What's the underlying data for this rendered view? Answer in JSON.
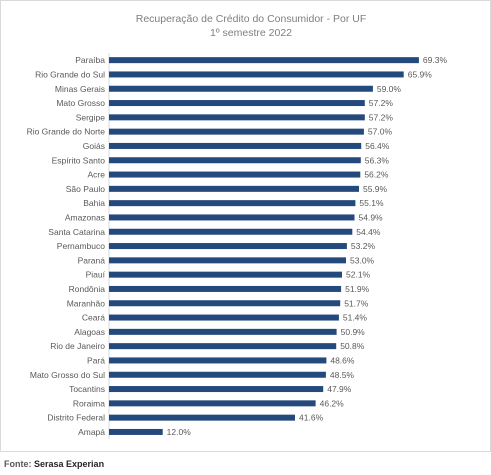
{
  "chart_data": {
    "type": "bar",
    "orientation": "horizontal",
    "title": "Recuperação de Crédito do Consumidor -  Por UF",
    "subtitle": "1º semestre 2022",
    "categories": [
      "Paraíba",
      "Rio Grande do Sul",
      "Minas Gerais",
      "Mato Grosso",
      "Sergipe",
      "Rio Grande do Norte",
      "Goiás",
      "Espírito Santo",
      "Acre",
      "São Paulo",
      "Bahia",
      "Amazonas",
      "Santa Catarina",
      "Pernambuco",
      "Paraná",
      "Piauí",
      "Rondônia",
      "Maranhão",
      "Ceará",
      "Alagoas",
      "Rio de Janeiro",
      "Pará",
      "Mato Grosso do Sul",
      "Tocantins",
      "Roraima",
      "Distrito Federal",
      "Amapá"
    ],
    "values": [
      69.3,
      65.9,
      59.0,
      57.2,
      57.2,
      57.0,
      56.4,
      56.3,
      56.2,
      55.9,
      55.1,
      54.9,
      54.4,
      53.2,
      53.0,
      52.1,
      51.9,
      51.7,
      51.4,
      50.9,
      50.8,
      48.6,
      48.5,
      47.9,
      46.2,
      41.6,
      12.0
    ],
    "value_labels": [
      "69.3%",
      "65.9%",
      "59.0%",
      "57.2%",
      "57.2%",
      "57.0%",
      "56.4%",
      "56.3%",
      "56.2%",
      "55.9%",
      "55.1%",
      "54.9%",
      "54.4%",
      "53.2%",
      "53.0%",
      "52.1%",
      "51.9%",
      "51.7%",
      "51.4%",
      "50.9%",
      "50.8%",
      "48.6%",
      "48.5%",
      "47.9%",
      "46.2%",
      "41.6%",
      "12.0%"
    ],
    "bar_color": "#24497c",
    "xlim": [
      0,
      72
    ],
    "grid": false,
    "legend": "none"
  },
  "footer": {
    "source_label": "Fonte:",
    "source_name": "Serasa Experian"
  }
}
